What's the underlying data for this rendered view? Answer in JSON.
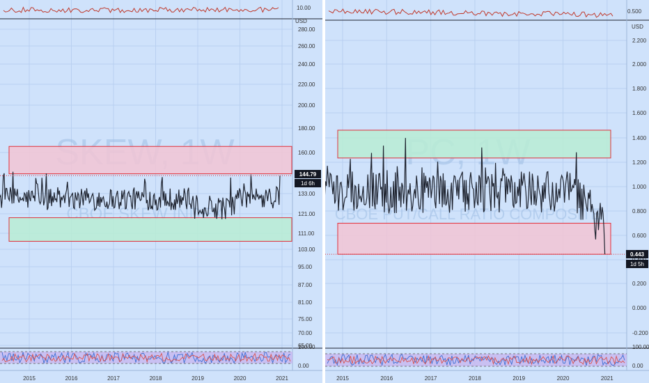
{
  "colors": {
    "background": "#cfe2fb",
    "grid": "#b9d0f0",
    "price_line": "#1f2430",
    "mini_line": "#c0392b",
    "red_zone_fill": "#f2c4d4",
    "red_zone_border": "#e0303a",
    "green_zone_fill": "#b8ecd4",
    "rsi_band": "#c7b8f0",
    "label_bg": "#131722",
    "label_fg": "#ffffff"
  },
  "panes": [
    {
      "watermark_symbol": "SKEW, 1W",
      "watermark_desc": "CBOE SKEW INDEX",
      "currency": "USD",
      "mini_label": "10.00",
      "price_label": "144.79",
      "countdown_label": "1d 6h",
      "chart_data": {
        "type": "line",
        "x_labels": [
          "2015",
          "2016",
          "2017",
          "2018",
          "2019",
          "2020",
          "2021"
        ],
        "y_ticks": [
          "280.00",
          "260.00",
          "240.00",
          "220.00",
          "200.00",
          "180.00",
          "160.00",
          "133.00",
          "121.00",
          "111.00",
          "103.00",
          "95.00",
          "87.00",
          "81.00",
          "75.00",
          "70.00",
          "65.00"
        ],
        "y_scale": "log",
        "last_value": 144.79,
        "y_range": [
          111,
          149
        ],
        "x_range": [
          2014.3,
          2020.95
        ],
        "zones": [
          {
            "color": "red",
            "y_top": 165,
            "y_bottom": 146
          },
          {
            "color": "green",
            "y_top": 119,
            "y_bottom": 107
          }
        ],
        "oscillator_ticks": [
          "100.00",
          "0.00"
        ]
      }
    },
    {
      "watermark_symbol": "PC, 1W",
      "watermark_desc": "CBOE PUT/CALL RATIO COMPOSITE",
      "currency": "USD",
      "mini_label": "0.500",
      "price_label": "0.443",
      "countdown_label": "1d 5h",
      "chart_data": {
        "type": "line",
        "x_labels": [
          "2015",
          "2016",
          "2017",
          "2018",
          "2019",
          "2020",
          "2021"
        ],
        "y_ticks": [
          "2.200",
          "2.000",
          "1.800",
          "1.600",
          "1.400",
          "1.200",
          "1.000",
          "0.800",
          "0.600",
          "0.400",
          "0.200",
          "0.000",
          "-0.200"
        ],
        "y_scale": "linear",
        "last_value": 0.443,
        "y_range": [
          0.44,
          1.47
        ],
        "x_range": [
          2014.3,
          2020.95
        ],
        "zones": [
          {
            "color": "green",
            "y_top": 1.47,
            "y_bottom": 1.24
          },
          {
            "color": "red",
            "y_top": 0.7,
            "y_bottom": 0.443
          }
        ],
        "oscillator_ticks": [
          "100.00",
          "0.00"
        ]
      }
    }
  ]
}
